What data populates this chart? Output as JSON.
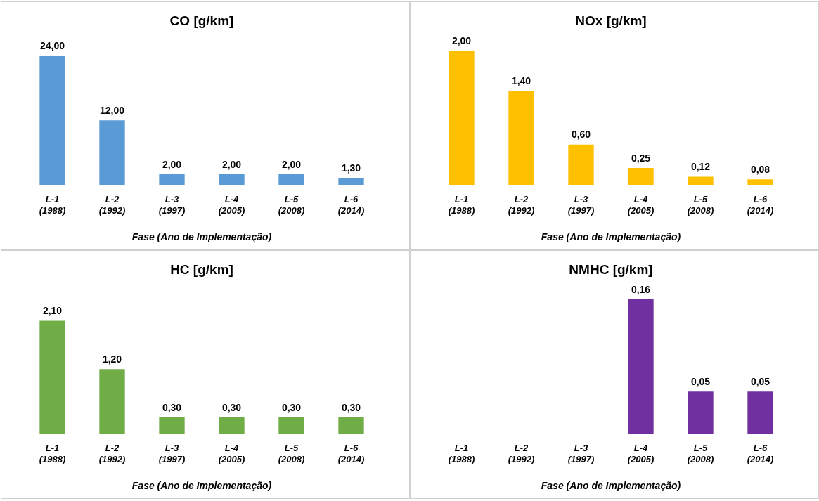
{
  "chart_data": [
    {
      "type": "bar",
      "title": "CO [g/km]",
      "xlabel": "Fase (Ano de Implementação)",
      "categories": [
        "L-1 (1988)",
        "L-2 (1992)",
        "L-3 (1997)",
        "L-4 (2005)",
        "L-5 (2008)",
        "L-6 (2014)"
      ],
      "values": [
        24,
        12,
        2,
        2,
        2,
        1.3
      ],
      "value_labels": [
        "24,00",
        "12,00",
        "2,00",
        "2,00",
        "2,00",
        "1,30"
      ],
      "color": "#5b9bd5",
      "grid": false,
      "legend": false
    },
    {
      "type": "bar",
      "title": "NOx [g/km]",
      "xlabel": "Fase (Ano de Implementação)",
      "categories": [
        "L-1 (1988)",
        "L-2 (1992)",
        "L-3 (1997)",
        "L-4 (2005)",
        "L-5 (2008)",
        "L-6 (2014)"
      ],
      "values": [
        2,
        1.4,
        0.6,
        0.25,
        0.12,
        0.08
      ],
      "value_labels": [
        "2,00",
        "1,40",
        "0,60",
        "0,25",
        "0,12",
        "0,08"
      ],
      "color": "#ffc000",
      "grid": false,
      "legend": false
    },
    {
      "type": "bar",
      "title": "HC [g/km]",
      "xlabel": "Fase (Ano de Implementação)",
      "categories": [
        "L-1 (1988)",
        "L-2 (1992)",
        "L-3 (1997)",
        "L-4 (2005)",
        "L-5 (2008)",
        "L-6 (2014)"
      ],
      "values": [
        2.1,
        1.2,
        0.3,
        0.3,
        0.3,
        0.3
      ],
      "value_labels": [
        "2,10",
        "1,20",
        "0,30",
        "0,30",
        "0,30",
        "0,30"
      ],
      "color": "#70ad47",
      "grid": false,
      "legend": false
    },
    {
      "type": "bar",
      "title": "NMHC [g/km]",
      "xlabel": "Fase (Ano de Implementação)",
      "categories": [
        "L-1 (1988)",
        "L-2 (1992)",
        "L-3 (1997)",
        "L-4 (2005)",
        "L-5 (2008)",
        "L-6 (2014)"
      ],
      "values": [
        null,
        null,
        null,
        0.16,
        0.05,
        0.05
      ],
      "value_labels": [
        null,
        null,
        null,
        "0,16",
        "0,05",
        "0,05"
      ],
      "color": "#7030a0",
      "grid": false,
      "legend": false
    }
  ]
}
